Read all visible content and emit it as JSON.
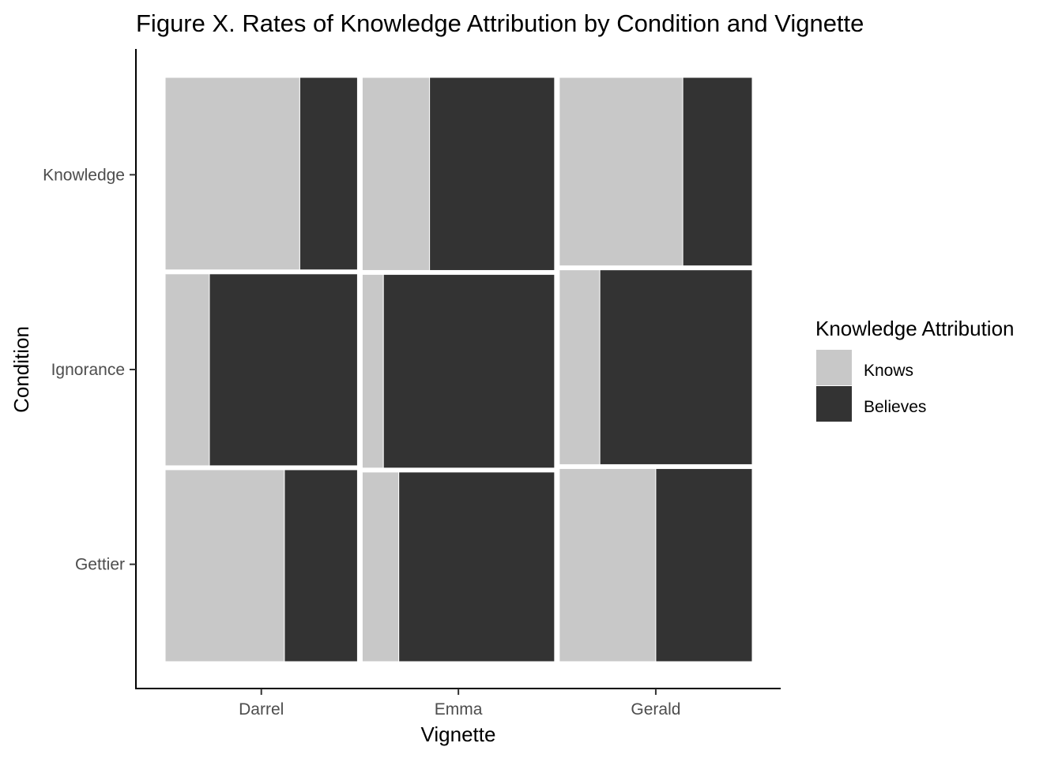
{
  "chart_data": {
    "type": "mosaic",
    "title": "Figure X. Rates of Knowledge Attribution by Condition and Vignette",
    "xlabel": "Vignette",
    "ylabel": "Condition",
    "x_categories": [
      "Darrel",
      "Emma",
      "Gerald"
    ],
    "y_categories": [
      "Knowledge",
      "Ignorance",
      "Gettier"
    ],
    "x_shares": [
      0.333,
      0.333,
      0.334
    ],
    "y_shares_by_vignette": {
      "Darrel": [
        0.334,
        0.333,
        0.333
      ],
      "Emma": [
        0.335,
        0.336,
        0.329
      ],
      "Gerald": [
        0.327,
        0.338,
        0.335
      ]
    },
    "fill": {
      "Darrel": {
        "Knowledge": [
          0.7,
          0.3
        ],
        "Ignorance": [
          0.23,
          0.77
        ],
        "Gettier": [
          0.62,
          0.38
        ]
      },
      "Emma": {
        "Knowledge": [
          0.35,
          0.65
        ],
        "Ignorance": [
          0.11,
          0.89
        ],
        "Gettier": [
          0.19,
          0.81
        ]
      },
      "Gerald": {
        "Knowledge": [
          0.64,
          0.36
        ],
        "Ignorance": [
          0.21,
          0.79
        ],
        "Gettier": [
          0.5,
          0.5
        ]
      }
    },
    "legend": {
      "title": "Knowledge Attribution",
      "position": "right",
      "items": [
        {
          "label": "Knows",
          "color": "#c8c8c8"
        },
        {
          "label": "Believes",
          "color": "#333333"
        }
      ]
    },
    "grid": false
  }
}
